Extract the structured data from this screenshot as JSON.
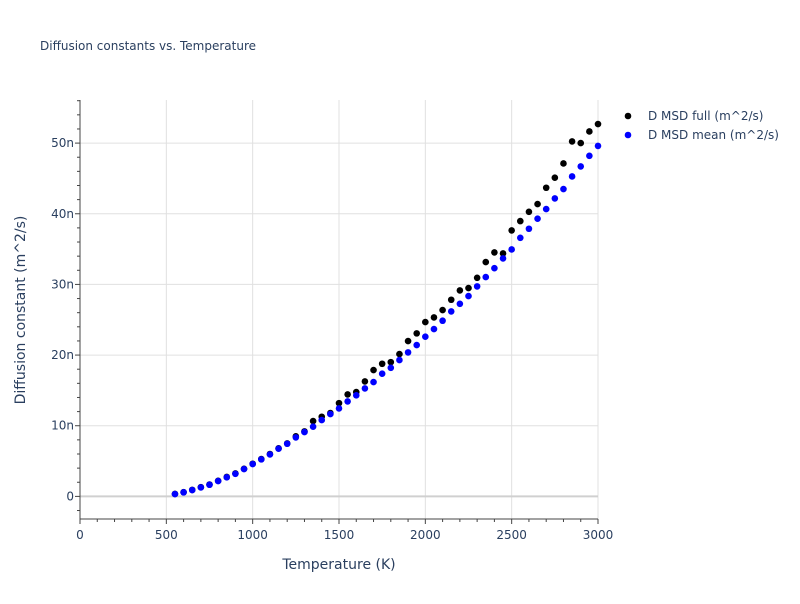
{
  "chart_data": {
    "type": "scatter",
    "title": "Diffusion constants vs. Temperature",
    "xlabel": "Temperature (K)",
    "ylabel": "Diffusion constant (m^2/s)",
    "xlim": [
      0,
      3000
    ],
    "ylim": [
      -3.2e-09,
      5.61e-08
    ],
    "grid": true,
    "legend_position": "top-right",
    "x_ticks": [
      0,
      500,
      1000,
      1500,
      2000,
      2500,
      3000
    ],
    "x_tick_labels": [
      "0",
      "500",
      "1000",
      "1500",
      "2000",
      "2500",
      "3000"
    ],
    "y_ticks": [
      0,
      1e-08,
      2e-08,
      3e-08,
      4e-08,
      5e-08
    ],
    "y_tick_labels": [
      "0",
      "10n",
      "20n",
      "30n",
      "40n",
      "50n"
    ],
    "x": [
      550,
      600,
      650,
      700,
      750,
      800,
      850,
      900,
      950,
      1000,
      1050,
      1100,
      1150,
      1200,
      1250,
      1300,
      1350,
      1400,
      1450,
      1500,
      1550,
      1600,
      1650,
      1700,
      1750,
      1800,
      1850,
      1900,
      1950,
      2000,
      2050,
      2100,
      2150,
      2200,
      2250,
      2300,
      2350,
      2400,
      2450,
      2500,
      2550,
      2600,
      2650,
      2700,
      2750,
      2800,
      2850,
      2900,
      2950,
      3000
    ],
    "series": [
      {
        "name": "D MSD full (m^2/s)",
        "color": "#000000",
        "values_n": [
          0.35,
          0.6,
          0.92,
          1.3,
          1.68,
          2.2,
          2.75,
          3.25,
          3.9,
          4.62,
          5.28,
          6.0,
          6.8,
          7.5,
          8.5,
          9.2,
          10.66,
          11.27,
          11.8,
          13.2,
          14.43,
          14.76,
          16.27,
          17.88,
          18.77,
          19.0,
          20.14,
          21.98,
          23.07,
          24.67,
          25.33,
          26.37,
          27.83,
          29.15,
          29.48,
          30.94,
          33.16,
          34.53,
          34.39,
          37.64,
          38.96,
          40.28,
          41.37,
          43.68,
          45.1,
          47.12,
          50.24,
          50.0,
          51.65,
          52.7
        ]
      },
      {
        "name": "D MSD mean (m^2/s)",
        "color": "#0000ff",
        "values_n": [
          0.33,
          0.57,
          0.9,
          1.27,
          1.65,
          2.17,
          2.7,
          3.2,
          3.87,
          4.58,
          5.24,
          5.94,
          6.75,
          7.45,
          8.35,
          9.1,
          9.86,
          10.8,
          11.65,
          12.45,
          13.44,
          14.3,
          15.28,
          16.18,
          17.36,
          18.2,
          19.3,
          20.38,
          21.42,
          22.6,
          23.68,
          24.86,
          26.18,
          27.26,
          28.35,
          29.72,
          31.04,
          32.3,
          33.68,
          34.95,
          36.6,
          37.88,
          39.3,
          40.66,
          42.17,
          43.5,
          45.28,
          46.7,
          48.2,
          49.6
        ]
      }
    ],
    "values_unit_note": "n"
  }
}
